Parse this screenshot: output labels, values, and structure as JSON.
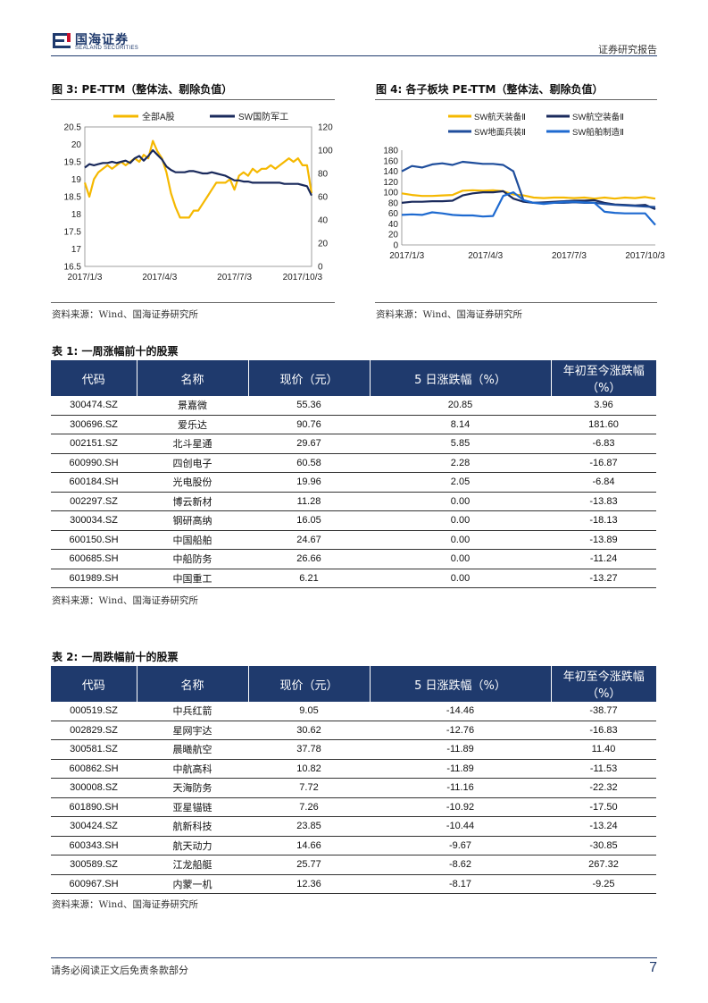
{
  "header": {
    "logo_cn": "国海证券",
    "logo_en": "SEALAND SECURITIES",
    "report_type": "证券研究报告"
  },
  "figure3": {
    "title": "图 3: PE-TTM（整体法、剔除负值）",
    "source": "资料来源：Wind、国海证券研究所"
  },
  "figure4": {
    "title": "图 4: 各子板块 PE-TTM（整体法、剔除负值）",
    "source": "资料来源：Wind、国海证券研究所"
  },
  "chart_data": [
    {
      "type": "line",
      "x_ticks": [
        "2017/1/3",
        "2017/4/3",
        "2017/7/3",
        "2017/10/3"
      ],
      "y_left_ticks": [
        "16.5",
        "17",
        "17.5",
        "18",
        "18.5",
        "19",
        "19.5",
        "20",
        "20.5"
      ],
      "y_left_lim": [
        16.5,
        20.5
      ],
      "y_right_ticks": [
        "0",
        "20",
        "40",
        "60",
        "80",
        "100",
        "120"
      ],
      "y_right_lim": [
        0,
        120
      ],
      "legend_position": "top",
      "series": [
        {
          "name": "全部A股",
          "axis": "left",
          "color": "#f5b800",
          "x": [
            0,
            2,
            4,
            6,
            8,
            10,
            12,
            14,
            16,
            18,
            20,
            22,
            24,
            26,
            28,
            30,
            32,
            34,
            36,
            38,
            40,
            42,
            44,
            46,
            48,
            50,
            52,
            54,
            56,
            58,
            60,
            62,
            64,
            66,
            68,
            70,
            72,
            74,
            76,
            78,
            80,
            82,
            84,
            86,
            88,
            90,
            92,
            94,
            96,
            98,
            100
          ],
          "values": [
            18.9,
            18.5,
            19.0,
            19.2,
            19.3,
            19.4,
            19.3,
            19.4,
            19.5,
            19.4,
            19.5,
            19.6,
            19.5,
            19.7,
            19.6,
            20.1,
            19.8,
            19.6,
            19.2,
            18.6,
            18.2,
            17.9,
            17.9,
            17.9,
            18.1,
            18.1,
            18.3,
            18.5,
            18.7,
            18.9,
            18.9,
            18.9,
            19.0,
            18.7,
            19.1,
            19.2,
            19.1,
            19.3,
            19.2,
            19.3,
            19.3,
            19.4,
            19.3,
            19.4,
            19.5,
            19.6,
            19.5,
            19.6,
            19.4,
            19.4,
            18.6
          ]
        },
        {
          "name": "SW国防军工",
          "axis": "right",
          "color": "#1a2a5c",
          "x": [
            0,
            2,
            4,
            6,
            8,
            10,
            12,
            14,
            16,
            18,
            20,
            22,
            24,
            26,
            28,
            30,
            32,
            34,
            36,
            38,
            40,
            42,
            44,
            46,
            48,
            50,
            52,
            54,
            56,
            58,
            60,
            62,
            64,
            66,
            68,
            70,
            72,
            74,
            76,
            78,
            80,
            82,
            84,
            86,
            88,
            90,
            92,
            94,
            96,
            98,
            100
          ],
          "values": [
            85,
            88,
            87,
            88,
            89,
            89,
            90,
            89,
            90,
            91,
            89,
            93,
            95,
            91,
            95,
            100,
            96,
            92,
            86,
            83,
            81,
            81,
            81,
            82,
            82,
            81,
            80,
            80,
            81,
            80,
            79,
            78,
            76,
            74,
            74,
            73,
            73,
            72,
            72,
            72,
            72,
            72,
            72,
            72,
            71,
            71,
            71,
            71,
            70,
            69,
            61
          ]
        }
      ]
    },
    {
      "type": "line",
      "x_ticks": [
        "2017/1/3",
        "2017/4/3",
        "2017/7/3",
        "2017/10/3"
      ],
      "y_ticks": [
        "0",
        "20",
        "40",
        "60",
        "80",
        "100",
        "120",
        "140",
        "160",
        "180"
      ],
      "ylim": [
        0,
        180
      ],
      "legend_position": "top",
      "series": [
        {
          "name": "SW航天装备Ⅱ",
          "color": "#f5b800",
          "x": [
            0,
            4,
            8,
            12,
            16,
            20,
            24,
            28,
            32,
            36,
            40,
            44,
            48,
            52,
            56,
            60,
            64,
            68,
            72,
            76,
            80,
            84,
            88,
            92,
            96,
            100
          ],
          "values": [
            98,
            95,
            93,
            93,
            94,
            95,
            103,
            104,
            103,
            104,
            102,
            96,
            94,
            90,
            89,
            90,
            90,
            89,
            90,
            88,
            90,
            88,
            90,
            89,
            91,
            88
          ]
        },
        {
          "name": "SW航空装备Ⅱ",
          "color": "#1a2a5c",
          "x": [
            0,
            4,
            8,
            12,
            16,
            20,
            24,
            28,
            32,
            36,
            40,
            44,
            48,
            52,
            56,
            60,
            64,
            68,
            72,
            76,
            80,
            84,
            88,
            92,
            96,
            100
          ],
          "values": [
            80,
            82,
            82,
            83,
            83,
            84,
            94,
            98,
            100,
            100,
            102,
            88,
            82,
            80,
            81,
            82,
            83,
            84,
            84,
            85,
            80,
            77,
            76,
            75,
            76,
            68
          ]
        },
        {
          "name": "SW地面兵装Ⅱ",
          "color": "#1f4e9c",
          "x": [
            0,
            4,
            8,
            12,
            16,
            20,
            24,
            28,
            32,
            36,
            40,
            44,
            48,
            52,
            56,
            60,
            64,
            68,
            72,
            76,
            80,
            84,
            88,
            92,
            96,
            100
          ],
          "values": [
            140,
            150,
            147,
            153,
            155,
            152,
            158,
            156,
            154,
            154,
            152,
            140,
            85,
            80,
            80,
            80,
            80,
            81,
            80,
            80,
            78,
            76,
            75,
            74,
            73,
            72
          ]
        },
        {
          "name": "SW船舶制造Ⅱ",
          "color": "#1e6ad0",
          "x": [
            0,
            4,
            8,
            12,
            16,
            20,
            24,
            28,
            32,
            36,
            40,
            44,
            48,
            52,
            56,
            60,
            64,
            68,
            72,
            76,
            80,
            84,
            88,
            92,
            96,
            100
          ],
          "values": [
            57,
            58,
            57,
            62,
            60,
            57,
            56,
            56,
            54,
            55,
            93,
            100,
            85,
            80,
            78,
            80,
            82,
            82,
            81,
            80,
            63,
            61,
            60,
            60,
            60,
            38
          ]
        }
      ]
    }
  ],
  "table1": {
    "title": "表 1: 一周涨幅前十的股票",
    "headers": [
      "代码",
      "名称",
      "现价（元）",
      "5 日涨跌幅（%）",
      "年初至今涨跌幅（%）"
    ],
    "rows": [
      [
        "300474.SZ",
        "景嘉微",
        "55.36",
        "20.85",
        "3.96"
      ],
      [
        "300696.SZ",
        "爱乐达",
        "90.76",
        "8.14",
        "181.60"
      ],
      [
        "002151.SZ",
        "北斗星通",
        "29.67",
        "5.85",
        "-6.83"
      ],
      [
        "600990.SH",
        "四创电子",
        "60.58",
        "2.28",
        "-16.87"
      ],
      [
        "600184.SH",
        "光电股份",
        "19.96",
        "2.05",
        "-6.84"
      ],
      [
        "002297.SZ",
        "博云新材",
        "11.28",
        "0.00",
        "-13.83"
      ],
      [
        "300034.SZ",
        "钢研高纳",
        "16.05",
        "0.00",
        "-18.13"
      ],
      [
        "600150.SH",
        "中国船舶",
        "24.67",
        "0.00",
        "-13.89"
      ],
      [
        "600685.SH",
        "中船防务",
        "26.66",
        "0.00",
        "-11.24"
      ],
      [
        "601989.SH",
        "中国重工",
        "6.21",
        "0.00",
        "-13.27"
      ]
    ],
    "source": "资料来源：Wind、国海证券研究所"
  },
  "table2": {
    "title": "表 2: 一周跌幅前十的股票",
    "headers": [
      "代码",
      "名称",
      "现价（元）",
      "5 日涨跌幅（%）",
      "年初至今涨跌幅（%）"
    ],
    "rows": [
      [
        "000519.SZ",
        "中兵红箭",
        "9.05",
        "-14.46",
        "-38.77"
      ],
      [
        "002829.SZ",
        "星网宇达",
        "30.62",
        "-12.76",
        "-16.83"
      ],
      [
        "300581.SZ",
        "晨曦航空",
        "37.78",
        "-11.89",
        "11.40"
      ],
      [
        "600862.SH",
        "中航高科",
        "10.82",
        "-11.89",
        "-11.53"
      ],
      [
        "300008.SZ",
        "天海防务",
        "7.72",
        "-11.16",
        "-22.32"
      ],
      [
        "601890.SH",
        "亚星锚链",
        "7.26",
        "-10.92",
        "-17.50"
      ],
      [
        "300424.SZ",
        "航新科技",
        "23.85",
        "-10.44",
        "-13.24"
      ],
      [
        "600343.SH",
        "航天动力",
        "14.66",
        "-9.67",
        "-30.85"
      ],
      [
        "300589.SZ",
        "江龙船艇",
        "25.77",
        "-8.62",
        "267.32"
      ],
      [
        "600967.SH",
        "内蒙一机",
        "12.36",
        "-8.17",
        "-9.25"
      ]
    ],
    "source": "资料来源：Wind、国海证券研究所"
  },
  "footer": {
    "disclaimer": "请务必阅读正文后免责条款部分",
    "page_number": "7"
  }
}
